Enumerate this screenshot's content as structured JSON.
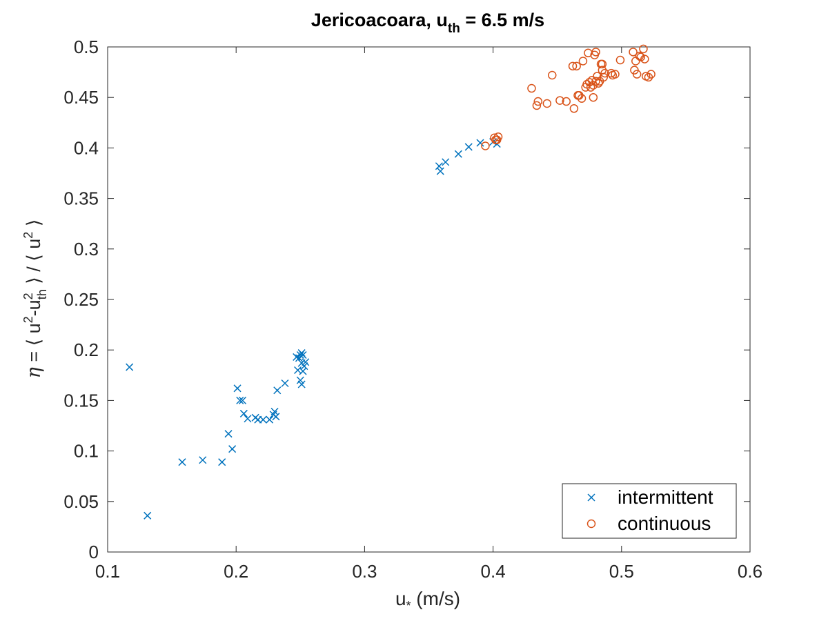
{
  "chart_data": {
    "type": "scatter",
    "title_main": "Jericoacoara, u",
    "title_sub": "th",
    "title_rest": " = 6.5 m/s",
    "xlabel_main": "u",
    "xlabel_sub": "*",
    "xlabel_rest": " (m/s)",
    "ylabel": {
      "eta": "η",
      "part1": " = ⟨ u",
      "sup1": "2",
      "part2": "-u",
      "sup2": "2",
      "sub2": "th",
      "part3": " ⟩ / ⟨ u",
      "sup3": "2",
      "part4": " ⟩"
    },
    "xlim": [
      0.1,
      0.6
    ],
    "ylim": [
      0,
      0.5
    ],
    "xticks": [
      0.1,
      0.2,
      0.3,
      0.4,
      0.5,
      0.6
    ],
    "xtick_labels": [
      "0.1",
      "0.2",
      "0.3",
      "0.4",
      "0.5",
      "0.6"
    ],
    "yticks": [
      0,
      0.05,
      0.1,
      0.15,
      0.2,
      0.25,
      0.3,
      0.35,
      0.4,
      0.45,
      0.5
    ],
    "ytick_labels": [
      "0",
      "0.05",
      "0.1",
      "0.15",
      "0.2",
      "0.25",
      "0.3",
      "0.35",
      "0.4",
      "0.45",
      "0.5"
    ],
    "grid": false,
    "legend_position": "bottom-right",
    "series": [
      {
        "name": "intermittent",
        "marker": "x",
        "color": "#0072BD",
        "points": [
          [
            0.117,
            0.183
          ],
          [
            0.131,
            0.036
          ],
          [
            0.158,
            0.089
          ],
          [
            0.174,
            0.091
          ],
          [
            0.189,
            0.089
          ],
          [
            0.194,
            0.117
          ],
          [
            0.197,
            0.102
          ],
          [
            0.201,
            0.162
          ],
          [
            0.203,
            0.15
          ],
          [
            0.205,
            0.15
          ],
          [
            0.206,
            0.137
          ],
          [
            0.209,
            0.132
          ],
          [
            0.215,
            0.133
          ],
          [
            0.217,
            0.131
          ],
          [
            0.221,
            0.131
          ],
          [
            0.226,
            0.131
          ],
          [
            0.229,
            0.136
          ],
          [
            0.23,
            0.139
          ],
          [
            0.231,
            0.134
          ],
          [
            0.232,
            0.16
          ],
          [
            0.238,
            0.167
          ],
          [
            0.247,
            0.193
          ],
          [
            0.248,
            0.18
          ],
          [
            0.249,
            0.192
          ],
          [
            0.25,
            0.195
          ],
          [
            0.251,
            0.197
          ],
          [
            0.252,
            0.195
          ],
          [
            0.251,
            0.187
          ],
          [
            0.25,
            0.17
          ],
          [
            0.251,
            0.166
          ],
          [
            0.253,
            0.184
          ],
          [
            0.254,
            0.188
          ],
          [
            0.252,
            0.179
          ],
          [
            0.358,
            0.382
          ],
          [
            0.359,
            0.377
          ],
          [
            0.363,
            0.386
          ],
          [
            0.373,
            0.394
          ],
          [
            0.381,
            0.401
          ],
          [
            0.39,
            0.405
          ],
          [
            0.4,
            0.406
          ],
          [
            0.403,
            0.404
          ]
        ]
      },
      {
        "name": "continuous",
        "marker": "o",
        "color": "#D95319",
        "points": [
          [
            0.394,
            0.402
          ],
          [
            0.401,
            0.41
          ],
          [
            0.402,
            0.408
          ],
          [
            0.403,
            0.408
          ],
          [
            0.404,
            0.411
          ],
          [
            0.43,
            0.459
          ],
          [
            0.434,
            0.442
          ],
          [
            0.435,
            0.446
          ],
          [
            0.442,
            0.444
          ],
          [
            0.446,
            0.472
          ],
          [
            0.452,
            0.447
          ],
          [
            0.457,
            0.446
          ],
          [
            0.462,
            0.481
          ],
          [
            0.463,
            0.439
          ],
          [
            0.465,
            0.481
          ],
          [
            0.466,
            0.452
          ],
          [
            0.467,
            0.452
          ],
          [
            0.469,
            0.449
          ],
          [
            0.47,
            0.486
          ],
          [
            0.472,
            0.46
          ],
          [
            0.473,
            0.463
          ],
          [
            0.474,
            0.494
          ],
          [
            0.475,
            0.465
          ],
          [
            0.476,
            0.46
          ],
          [
            0.477,
            0.467
          ],
          [
            0.478,
            0.45
          ],
          [
            0.478,
            0.462
          ],
          [
            0.479,
            0.492
          ],
          [
            0.48,
            0.495
          ],
          [
            0.48,
            0.466
          ],
          [
            0.481,
            0.471
          ],
          [
            0.482,
            0.464
          ],
          [
            0.483,
            0.466
          ],
          [
            0.484,
            0.483
          ],
          [
            0.485,
            0.477
          ],
          [
            0.485,
            0.483
          ],
          [
            0.486,
            0.47
          ],
          [
            0.487,
            0.474
          ],
          [
            0.492,
            0.474
          ],
          [
            0.493,
            0.472
          ],
          [
            0.495,
            0.473
          ],
          [
            0.499,
            0.487
          ],
          [
            0.509,
            0.495
          ],
          [
            0.51,
            0.477
          ],
          [
            0.511,
            0.486
          ],
          [
            0.512,
            0.473
          ],
          [
            0.514,
            0.491
          ],
          [
            0.515,
            0.49
          ],
          [
            0.517,
            0.498
          ],
          [
            0.518,
            0.488
          ],
          [
            0.519,
            0.471
          ],
          [
            0.521,
            0.47
          ],
          [
            0.523,
            0.473
          ]
        ]
      }
    ]
  }
}
